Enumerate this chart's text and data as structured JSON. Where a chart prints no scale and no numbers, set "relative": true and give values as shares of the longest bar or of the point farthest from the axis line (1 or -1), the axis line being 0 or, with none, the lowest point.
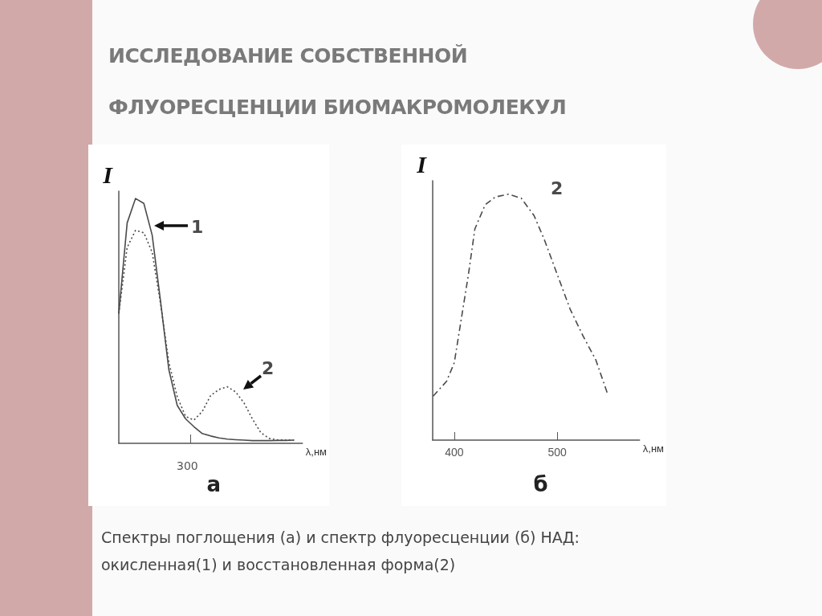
{
  "chart_data": [
    {
      "type": "line",
      "title": "ИССЛЕДОВАНИЕ СОБСТВЕННОЙ ФЛУОРЕСЦЕНЦИИ  БИОМАКРОМОЛЕКУЛ",
      "subtitle": "а",
      "xlabel": "λ,нм",
      "ylabel": "I",
      "relative": true,
      "annotations": [
        "300"
      ],
      "categories": [
        null,
        null,
        null,
        null,
        null,
        null,
        null,
        null,
        null,
        null,
        null,
        null,
        null,
        null,
        null,
        null,
        null,
        null,
        null,
        null,
        null,
        null,
        null
      ],
      "series": [
        {
          "name": "1",
          "color": "#4a4a4a",
          "line_style": "solid",
          "values": [
            0.53,
            0.9,
            1.0,
            0.98,
            0.85,
            0.58,
            0.3,
            0.155,
            0.1,
            0.068,
            0.04,
            0.03,
            0.022,
            0.017,
            0.015,
            0.013,
            0.011,
            0.011,
            0.011,
            0.012,
            0.012,
            0.013,
            null
          ]
        },
        {
          "name": "2",
          "color": "#4a4a4a",
          "line_style": "dotted",
          "values": [
            0.53,
            0.8,
            0.87,
            0.86,
            0.78,
            0.57,
            0.33,
            0.19,
            0.11,
            0.095,
            0.13,
            0.195,
            0.22,
            0.231,
            0.21,
            0.165,
            0.1,
            0.044,
            0.02,
            0.014,
            0.013,
            0.013,
            null
          ]
        }
      ]
    },
    {
      "type": "line",
      "subtitle": "б",
      "xlabel": "λ,нм",
      "ylabel": "I",
      "relative": true,
      "xlim": [
        379,
        580
      ],
      "xticks": [
        400,
        500
      ],
      "annotations": [
        "Спектры поглощения (а) и спектр флуоресценции (б) НАД: окисленная(1) и восстановленная форма(2)"
      ],
      "series": [
        {
          "name": "2",
          "color": "#4a4a4a",
          "line_style": "dashed",
          "x": [
            379.5,
            392.5,
            400,
            407.5,
            413.75,
            420,
            430,
            440,
            452.5,
            465,
            477.5,
            487.5,
            500,
            512.5,
            525,
            537.5,
            548.75
          ],
          "values": [
            0.179,
            0.239,
            0.315,
            0.511,
            0.674,
            0.859,
            0.957,
            0.989,
            1.0,
            0.984,
            0.913,
            0.815,
            0.674,
            0.533,
            0.424,
            0.326,
            0.19
          ]
        }
      ]
    }
  ]
}
